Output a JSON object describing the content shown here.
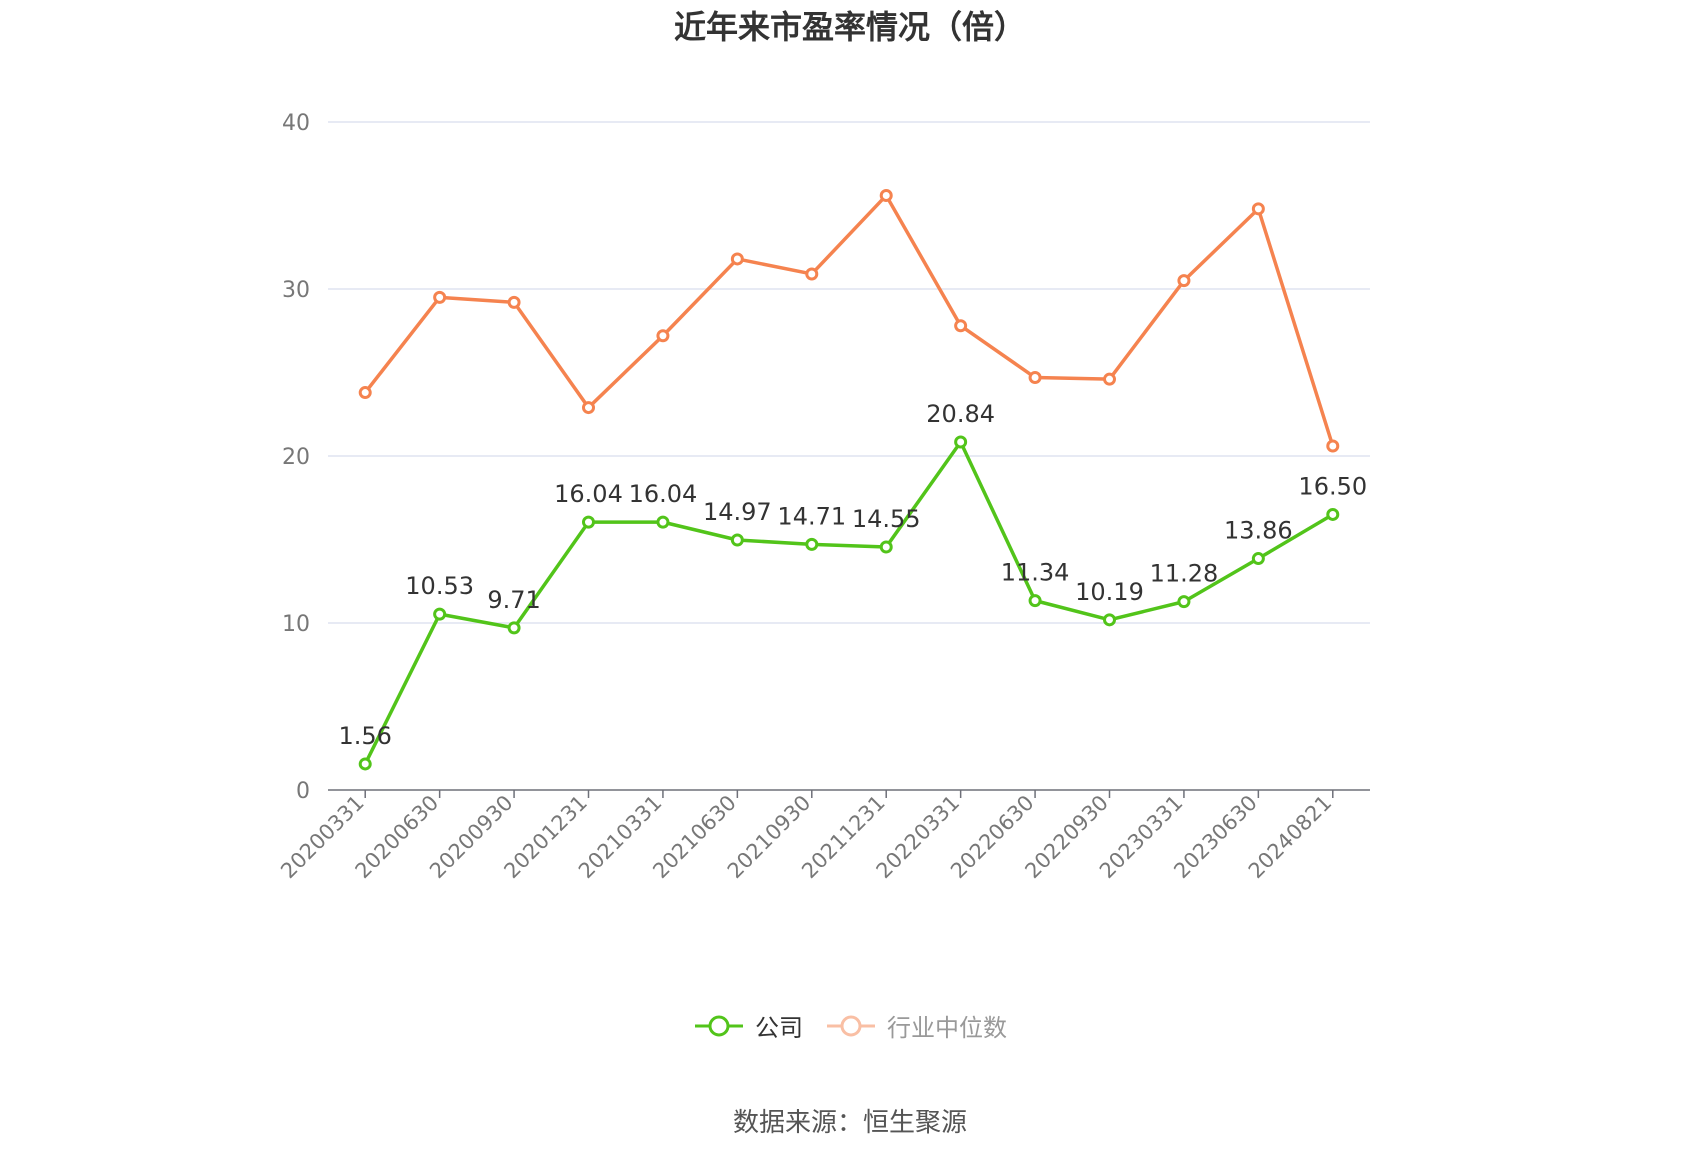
{
  "chart_data": {
    "type": "line",
    "title": "近年来市盈率情况（倍）",
    "categories": [
      "20200331",
      "20200630",
      "20200930",
      "20201231",
      "20210331",
      "20210630",
      "20210930",
      "20211231",
      "20220331",
      "20220630",
      "20220930",
      "20230331",
      "20230630",
      "20240821"
    ],
    "ylim": [
      0,
      40
    ],
    "yticks": [
      0,
      10,
      20,
      30,
      40
    ],
    "grid": true,
    "legend_position": "bottom",
    "series": [
      {
        "name": "公司",
        "color": "#52c41a",
        "values": [
          1.56,
          10.53,
          9.71,
          16.04,
          16.04,
          14.97,
          14.71,
          14.55,
          20.84,
          11.34,
          10.19,
          11.28,
          13.86,
          16.5
        ],
        "labels": [
          "1.56",
          "10.53",
          "9.71",
          "16.04",
          "16.04",
          "14.97",
          "14.71",
          "14.55",
          "20.84",
          "11.34",
          "10.19",
          "11.28",
          "13.86",
          "16.50"
        ]
      },
      {
        "name": "行业中位数",
        "color": "#f5834f",
        "values": [
          23.8,
          29.5,
          29.2,
          22.9,
          27.2,
          31.8,
          30.9,
          35.6,
          27.8,
          24.7,
          24.6,
          30.5,
          34.8,
          20.6
        ]
      }
    ]
  },
  "legend": {
    "company": "公司",
    "industry": "行业中位数"
  },
  "source": "数据来源：恒生聚源"
}
